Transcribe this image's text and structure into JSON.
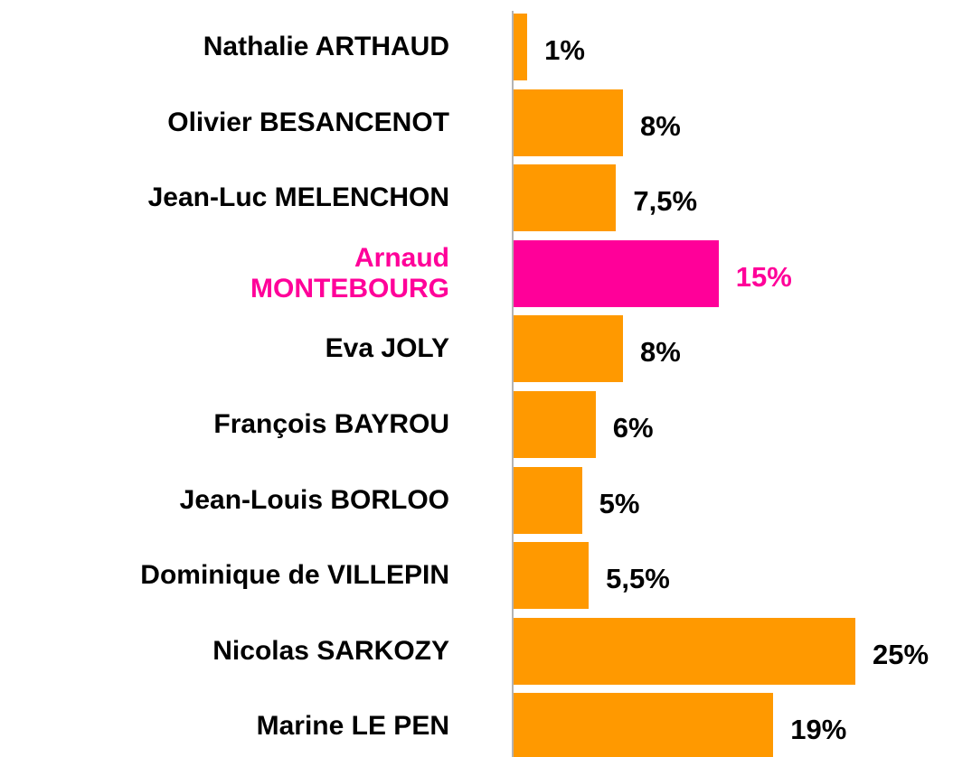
{
  "chart_data": {
    "type": "bar",
    "orientation": "horizontal",
    "categories": [
      "Nathalie ARTHAUD",
      "Olivier BESANCENOT",
      "Jean-Luc MELENCHON",
      "Arnaud\nMONTEBOURG",
      "Eva JOLY",
      "François BAYROU",
      "Jean-Louis BORLOO",
      "Dominique de VILLEPIN",
      "Nicolas SARKOZY",
      "Marine LE PEN"
    ],
    "values": [
      1,
      8,
      7.5,
      15,
      8,
      6,
      5,
      5.5,
      25,
      19
    ],
    "value_labels": [
      "1%",
      "8%",
      "7,5%",
      "15%",
      "8%",
      "6%",
      "5%",
      "5,5%",
      "25%",
      "19%"
    ],
    "colors": [
      "#ff9900",
      "#ff9900",
      "#ff9900",
      "#ff0099",
      "#ff9900",
      "#ff9900",
      "#ff9900",
      "#ff9900",
      "#ff9900",
      "#ff9900"
    ],
    "label_colors": [
      "#000000",
      "#000000",
      "#000000",
      "#ff0099",
      "#000000",
      "#000000",
      "#000000",
      "#000000",
      "#000000",
      "#000000"
    ]
  }
}
